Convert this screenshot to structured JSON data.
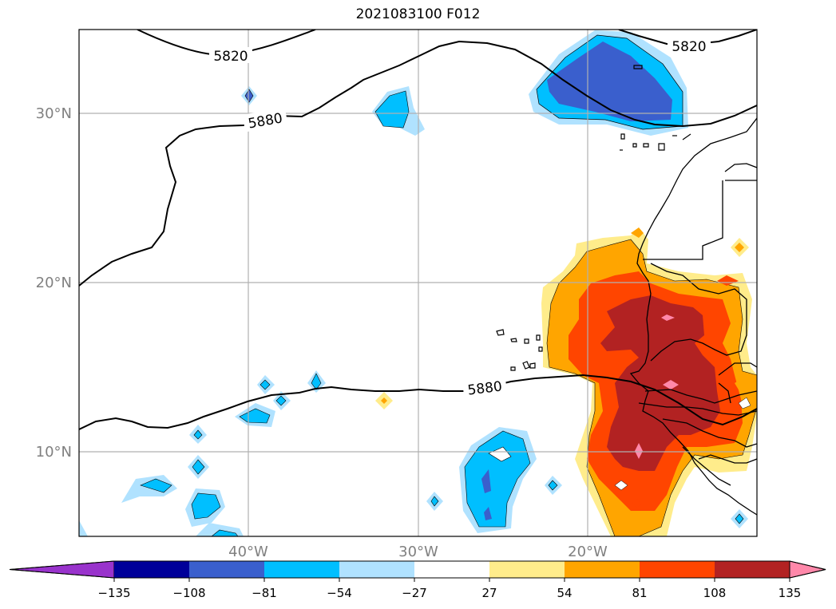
{
  "title": "2021083100 F012",
  "map": {
    "lat_labels": [
      "30°N",
      "20°N",
      "10°N"
    ],
    "lon_labels": [
      "40°W",
      "30°W",
      "20°W"
    ],
    "contour_labels": [
      "5820",
      "5820",
      "5880",
      "5880"
    ]
  },
  "colorbar": {
    "levels": [
      "−135",
      "−108",
      "−81",
      "−54",
      "−27",
      "27",
      "54",
      "81",
      "108",
      "135"
    ],
    "colors": [
      "#9933cc",
      "#000099",
      "#3a5fcd",
      "#00bfff",
      "#b0e2ff",
      "#ffffff",
      "#ffec8b",
      "#ffa500",
      "#ff4500",
      "#b22222",
      "#ff88aa"
    ]
  },
  "colors": {
    "lt_blue": "#b0e2ff",
    "blue": "#00bfff",
    "royal": "#3a5fcd",
    "yellow": "#ffec8b",
    "orange": "#ffa500",
    "redorange": "#ff4500",
    "firebrick": "#b22222",
    "pink": "#ff88aa",
    "grid": "#b0b0b0",
    "tick": "#808080"
  }
}
